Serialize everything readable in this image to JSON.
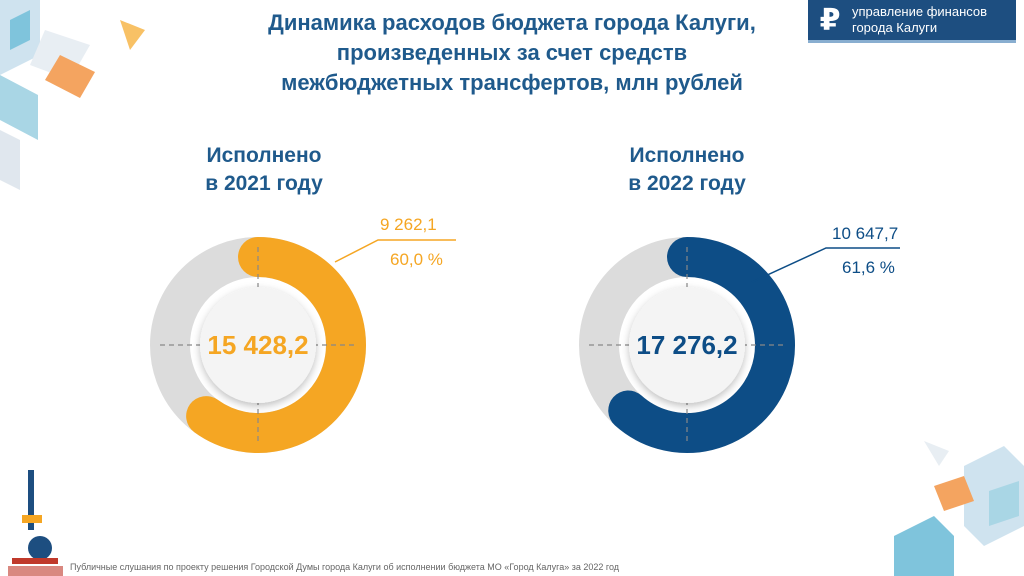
{
  "header": {
    "title_lines": [
      "Динамика расходов бюджета города Калуги,",
      "произведенных за счет средств",
      "межбюджетных трансфертов, млн рублей"
    ],
    "logo_symbol": "₽",
    "logo_lines": [
      "управление финансов",
      "города Калуги"
    ]
  },
  "footer": "Публичные слушания по проекту решения Городской Думы города Калуги об исполнении бюджета МО «Город Калуга» за 2022 год",
  "colors": {
    "title": "#1f5a8c",
    "accent_2021": "#f5a623",
    "accent_2022": "#0d4d86",
    "ring_bg": "#dcdcdc"
  },
  "chart_data": [
    {
      "type": "pie",
      "subtitle_lines": [
        "Исполнено",
        "в 2021 году"
      ],
      "total_label": "15 428,2",
      "total": 15428.2,
      "value": 9262.1,
      "value_label": "9 262,1",
      "percent_label": "60,0 %",
      "percent": 60.0,
      "color": "#f5a623"
    },
    {
      "type": "pie",
      "subtitle_lines": [
        "Исполнено",
        "в 2022 году"
      ],
      "total_label": "17 276,2",
      "total": 17276.2,
      "value": 10647.7,
      "value_label": "10 647,7",
      "percent_label": "61,6 %",
      "percent": 61.6,
      "color": "#0d4d86"
    }
  ]
}
